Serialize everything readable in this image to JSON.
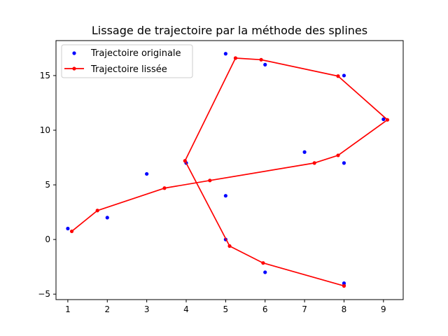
{
  "chart_data": {
    "type": "line",
    "title": "Lissage de trajectoire par la méthode des splines",
    "xlabel": "",
    "ylabel": "",
    "xlim": [
      0.7,
      9.5
    ],
    "ylim": [
      -5.5,
      18.2
    ],
    "xticks": [
      1,
      2,
      3,
      4,
      5,
      6,
      7,
      8,
      9
    ],
    "yticks": [
      -5,
      0,
      5,
      10,
      15
    ],
    "grid": false,
    "legend_position": "top-left",
    "series": [
      {
        "name": "Trajectoire originale",
        "style": "points",
        "color": "#0000ff",
        "x": [
          1,
          2,
          3,
          4,
          5,
          5,
          6,
          6,
          7,
          8,
          8,
          8,
          5,
          9,
          8
        ],
        "y": [
          1,
          2,
          6,
          7,
          4,
          0,
          -3,
          16,
          8,
          7,
          -4,
          15,
          17,
          11,
          -4.2
        ]
      },
      {
        "name": "Trajectoire lissée",
        "style": "line-markers",
        "color": "#ff0000",
        "x": [
          1.1,
          1.75,
          3.45,
          4.6,
          7.25,
          7.85,
          9.1,
          7.85,
          5.9,
          5.25,
          3.97,
          5.1,
          5.95,
          8.0
        ],
        "y": [
          0.75,
          2.65,
          4.7,
          5.4,
          7.0,
          7.7,
          10.95,
          14.95,
          16.45,
          16.6,
          7.2,
          -0.6,
          -2.15,
          -4.25
        ]
      }
    ]
  }
}
